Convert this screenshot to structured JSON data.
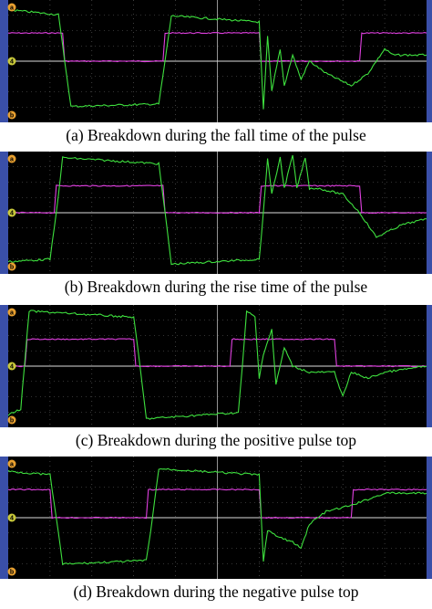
{
  "panels": [
    {
      "caption": "(a) Breakdown during the fall time of the pulse",
      "markers": [
        "a",
        "4",
        "b"
      ]
    },
    {
      "caption": "(b) Breakdown during the rise time of the pulse",
      "markers": [
        "a",
        "4",
        "b"
      ]
    },
    {
      "caption": "(c) Breakdown during the positive pulse top",
      "markers": [
        "a",
        "4",
        "b"
      ]
    },
    {
      "caption": "(d) Breakdown during the negative pulse top",
      "markers": [
        "a",
        "4",
        "b"
      ]
    }
  ]
}
